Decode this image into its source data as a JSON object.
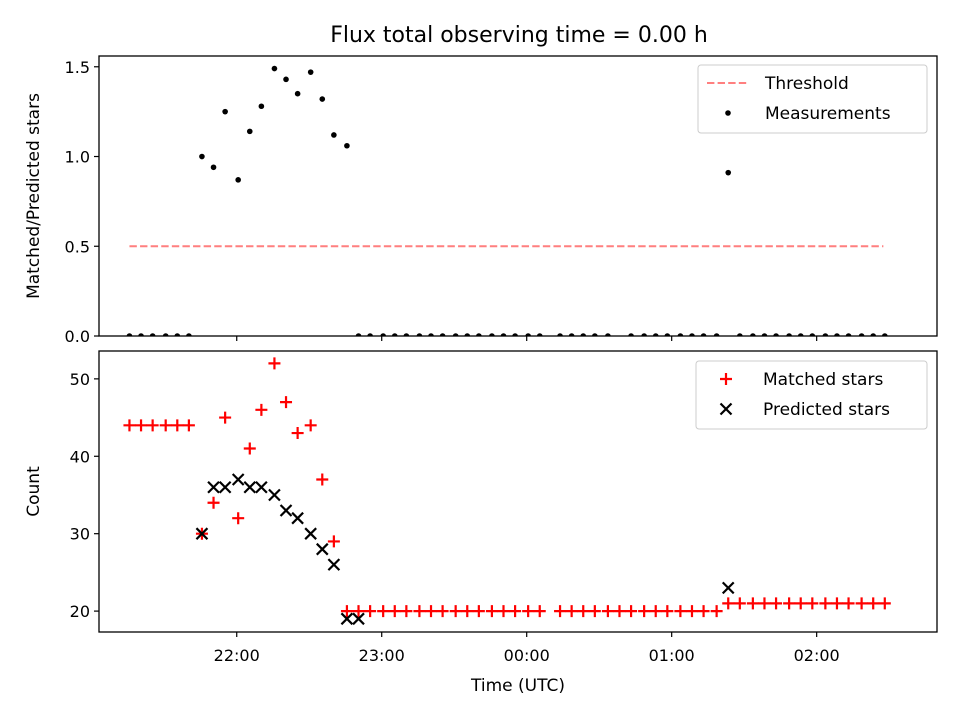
{
  "figure": {
    "title": "Flux total observing time = 0.00 h"
  },
  "chart_data": [
    {
      "type": "scatter",
      "ylabel": "Matched/Predicted stars",
      "xlim_hours": [
        -2.95,
        2.83
      ],
      "ylim": [
        0,
        1.56
      ],
      "yticks": [
        "0.0",
        "0.5",
        "1.0",
        "1.5"
      ],
      "ytick_values": [
        0,
        0.5,
        1.0,
        1.5
      ],
      "xticks": [
        "22:00",
        "23:00",
        "00:00",
        "01:00",
        "02:00"
      ],
      "xtick_values_hours": [
        -2,
        -1,
        0,
        1,
        2
      ],
      "legend": {
        "placement": "top-right",
        "entries": [
          "Threshold",
          "Measurements"
        ]
      },
      "series": [
        {
          "name": "Threshold",
          "kind": "dashed-line",
          "color": "#ff7f7f",
          "x_hours": [
            -2.74,
            2.46
          ],
          "y": [
            0.5,
            0.5
          ]
        },
        {
          "name": "Measurements",
          "kind": "dots",
          "color": "#000000",
          "x_hours": [
            -2.74,
            -2.66,
            -2.58,
            -2.49,
            -2.41,
            -2.33,
            -2.24,
            -2.16,
            -2.08,
            -1.99,
            -1.91,
            -1.83,
            -1.74,
            -1.66,
            -1.58,
            -1.49,
            -1.41,
            -1.33,
            -1.24,
            -1.16,
            -1.08,
            -0.99,
            -0.91,
            -0.83,
            -0.74,
            -0.66,
            -0.58,
            -0.49,
            -0.41,
            -0.33,
            -0.24,
            -0.16,
            -0.08,
            0.01,
            0.09,
            0.23,
            0.31,
            0.39,
            0.47,
            0.56,
            0.72,
            0.81,
            0.89,
            0.97,
            1.06,
            1.14,
            1.22,
            1.31,
            1.39,
            1.47,
            1.56,
            1.64,
            1.72,
            1.81,
            1.89,
            1.97,
            2.06,
            2.14,
            2.22,
            2.31,
            2.39,
            2.47
          ],
          "y": [
            0,
            0,
            0,
            0,
            0,
            0,
            1.0,
            0.94,
            1.25,
            0.87,
            1.14,
            1.28,
            1.49,
            1.43,
            1.35,
            1.47,
            1.32,
            1.12,
            1.06,
            0,
            0,
            0,
            0,
            0,
            0,
            0,
            0,
            0,
            0,
            0,
            0,
            0,
            0,
            0,
            0,
            0,
            0,
            0,
            0,
            0,
            0,
            0,
            0,
            0,
            0,
            0,
            0,
            0,
            0.91,
            0,
            0,
            0,
            0,
            0,
            0,
            0,
            0,
            0,
            0,
            0,
            0,
            0
          ]
        }
      ]
    },
    {
      "type": "scatter",
      "ylabel": "Count",
      "xlabel": "Time (UTC)",
      "xlim_hours": [
        -2.95,
        2.83
      ],
      "ylim": [
        17.3,
        53.6
      ],
      "yticks": [
        "20",
        "30",
        "40",
        "50"
      ],
      "ytick_values": [
        20,
        30,
        40,
        50
      ],
      "xticks": [
        "22:00",
        "23:00",
        "00:00",
        "01:00",
        "02:00"
      ],
      "xtick_values_hours": [
        -2,
        -1,
        0,
        1,
        2
      ],
      "legend": {
        "placement": "top-right",
        "entries": [
          "Matched stars",
          "Predicted stars"
        ]
      },
      "series": [
        {
          "name": "Matched stars",
          "kind": "plus",
          "color": "#ff0000",
          "x_hours": [
            -2.74,
            -2.66,
            -2.58,
            -2.49,
            -2.41,
            -2.33,
            -2.24,
            -2.16,
            -2.08,
            -1.99,
            -1.91,
            -1.83,
            -1.74,
            -1.66,
            -1.58,
            -1.49,
            -1.41,
            -1.33,
            -1.24,
            -1.16,
            -1.08,
            -0.99,
            -0.91,
            -0.83,
            -0.74,
            -0.66,
            -0.58,
            -0.49,
            -0.41,
            -0.33,
            -0.24,
            -0.16,
            -0.08,
            0.01,
            0.09,
            0.23,
            0.31,
            0.39,
            0.47,
            0.56,
            0.64,
            0.72,
            0.81,
            0.89,
            0.97,
            1.06,
            1.14,
            1.22,
            1.31,
            1.39,
            1.47,
            1.56,
            1.64,
            1.72,
            1.81,
            1.89,
            1.97,
            2.06,
            2.14,
            2.22,
            2.31,
            2.39,
            2.47
          ],
          "y": [
            44,
            44,
            44,
            44,
            44,
            44,
            30,
            34,
            45,
            32,
            41,
            46,
            52,
            47,
            43,
            44,
            37,
            29,
            20,
            20,
            20,
            20,
            20,
            20,
            20,
            20,
            20,
            20,
            20,
            20,
            20,
            20,
            20,
            20,
            20,
            20,
            20,
            20,
            20,
            20,
            20,
            20,
            20,
            20,
            20,
            20,
            20,
            20,
            20,
            21,
            21,
            21,
            21,
            21,
            21,
            21,
            21,
            21,
            21,
            21,
            21,
            21,
            21
          ]
        },
        {
          "name": "Predicted stars",
          "kind": "cross",
          "color": "#000000",
          "x_hours": [
            -2.24,
            -2.16,
            -2.08,
            -1.99,
            -1.91,
            -1.83,
            -1.74,
            -1.66,
            -1.58,
            -1.49,
            -1.41,
            -1.33,
            -1.24,
            -1.16,
            1.39
          ],
          "y": [
            30,
            36,
            36,
            37,
            36,
            36,
            35,
            33,
            32,
            30,
            28,
            26,
            19,
            19,
            23
          ]
        }
      ]
    }
  ]
}
